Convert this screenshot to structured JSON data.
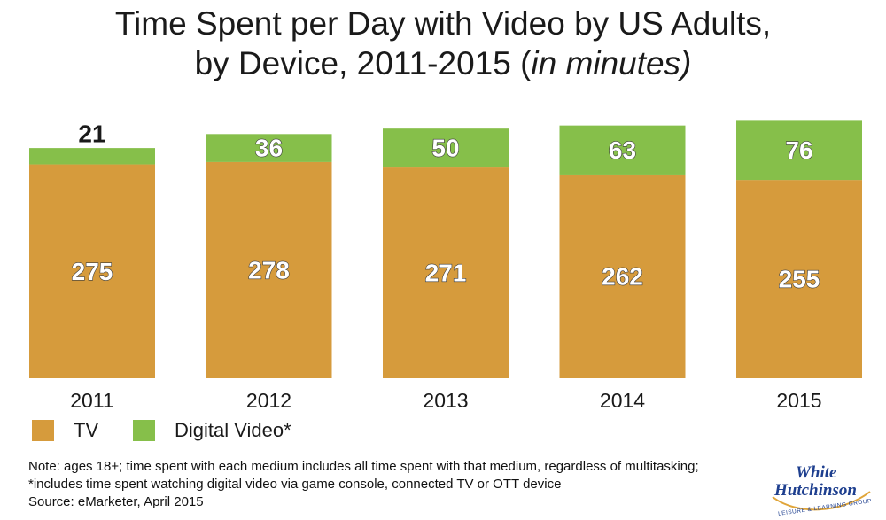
{
  "title_parts": {
    "line1": "Time Spent per Day with Video by US Adults,",
    "line2_plain": "by Device, 2011-2015 (",
    "line2_italic": "in minutes)"
  },
  "colors": {
    "tv": "#d69b3c",
    "digital": "#86bf4a",
    "label_dark": "#1a1a1a",
    "label_light": "#ffffff"
  },
  "legend": {
    "tv_label": "TV",
    "digital_label": "Digital Video*"
  },
  "notes": {
    "line1": "Note: ages 18+; time spent with each medium includes all time spent with that medium, regardless of multitasking;",
    "line2": "*includes time spent watching digital video via game console, connected TV or OTT device",
    "line3": "Source: eMarketer, April 2015"
  },
  "logo": {
    "line1": "White",
    "line2": "Hutchinson",
    "tagline": "LEISURE & LEARNING GROUP"
  },
  "chart_data": {
    "type": "bar",
    "stacked": true,
    "title": "Time Spent per Day with Video by US Adults, by Device, 2011-2015 (in minutes)",
    "categories": [
      "2011",
      "2012",
      "2013",
      "2014",
      "2015"
    ],
    "series": [
      {
        "name": "TV",
        "values": [
          275,
          278,
          271,
          262,
          255
        ]
      },
      {
        "name": "Digital Video*",
        "values": [
          21,
          36,
          50,
          63,
          76
        ]
      }
    ],
    "ylim": [
      0,
      331
    ],
    "grid": false,
    "legend_position": "bottom-left"
  }
}
